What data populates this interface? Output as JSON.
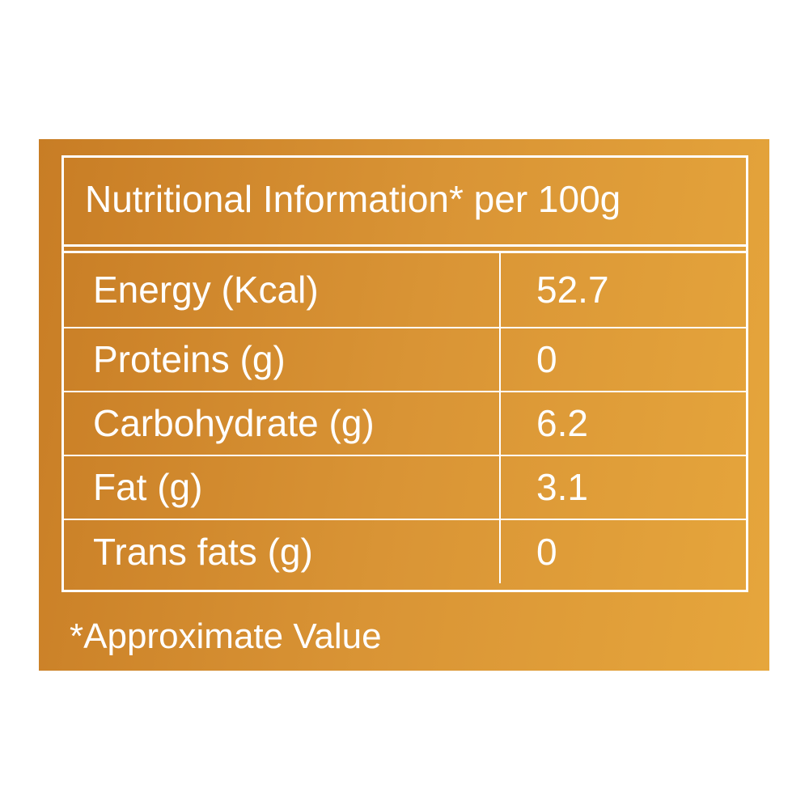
{
  "header": {
    "title": "Nutritional Information* per 100g"
  },
  "table": {
    "rows": [
      [
        "Energy (Kcal)",
        "52.7"
      ],
      [
        "Proteins (g)",
        "0"
      ],
      [
        "Carbohydrate (g)",
        "6.2"
      ],
      [
        "Fat (g)",
        "3.1"
      ],
      [
        "Trans fats (g)",
        "0"
      ]
    ]
  },
  "footnote": "*Approximate Value"
}
